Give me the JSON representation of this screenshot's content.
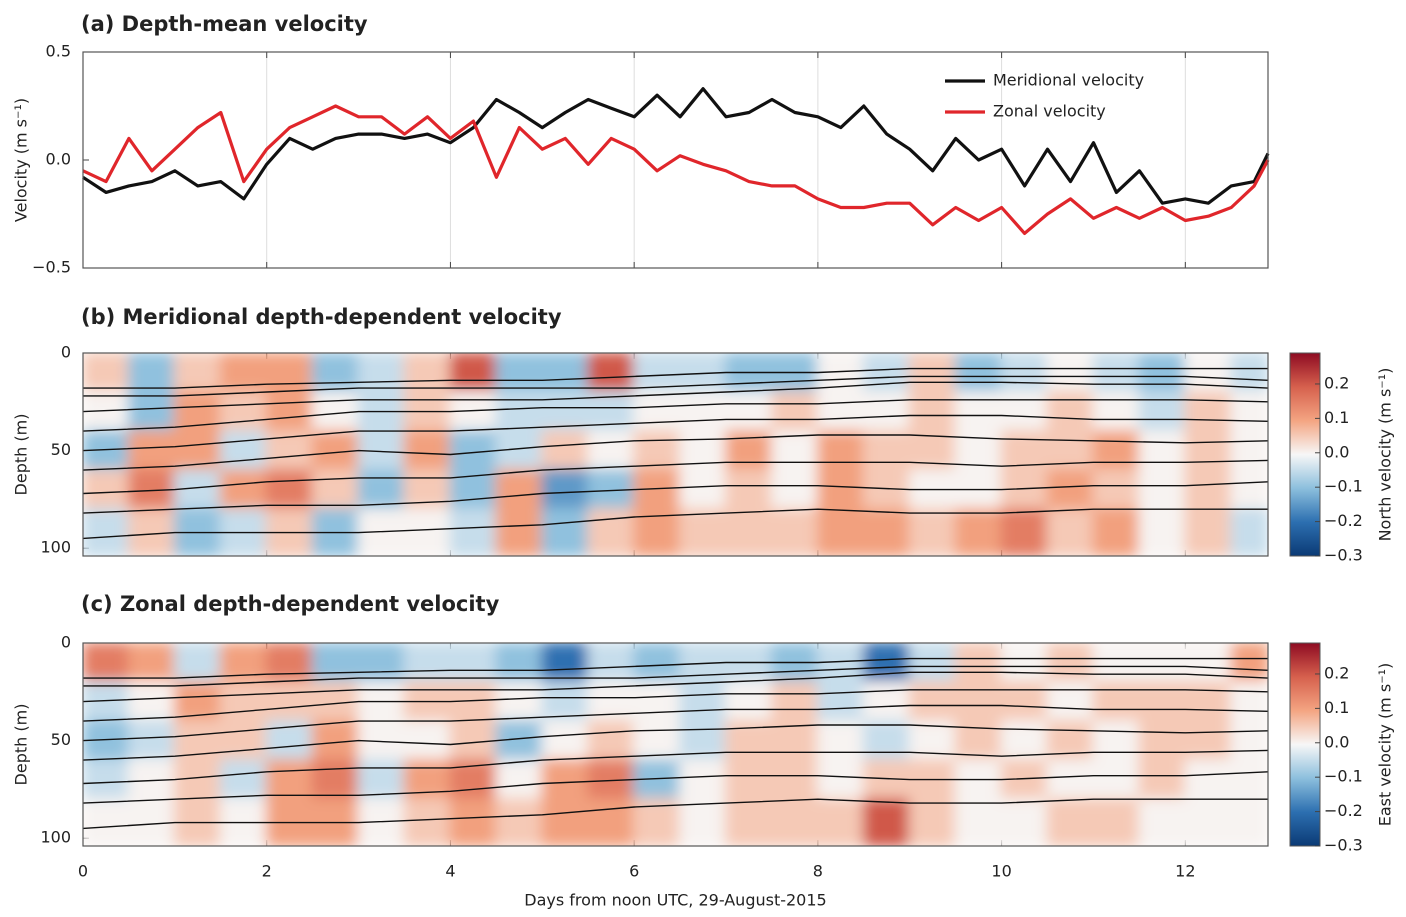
{
  "chart_data": [
    {
      "type": "line",
      "title": "(a) Depth-mean velocity",
      "ylabel": "Velocity (m s⁻¹)",
      "xlim": [
        0,
        12.9
      ],
      "xticks": [
        0,
        2,
        4,
        6,
        8,
        10,
        12
      ],
      "ylim": [
        -0.5,
        0.5
      ],
      "yticks": [
        {
          "value": -0.5,
          "label": "−0.5"
        },
        {
          "value": 0,
          "label": "0.0"
        },
        0.5
      ],
      "grid": true,
      "legend": "upper right",
      "x": [
        0,
        0.25,
        0.5,
        0.75,
        1,
        1.25,
        1.5,
        1.75,
        2,
        2.25,
        2.5,
        2.75,
        3,
        3.25,
        3.5,
        3.75,
        4,
        4.25,
        4.5,
        4.75,
        5,
        5.25,
        5.5,
        5.75,
        6,
        6.25,
        6.5,
        6.75,
        7,
        7.25,
        7.5,
        7.75,
        8,
        8.25,
        8.5,
        8.75,
        9,
        9.25,
        9.5,
        9.75,
        10,
        10.25,
        10.5,
        10.75,
        11,
        11.25,
        11.5,
        11.75,
        12,
        12.25,
        12.5,
        12.75,
        12.9
      ],
      "series": [
        {
          "name": "Meridional velocity",
          "color": "#111111",
          "values": [
            -0.08,
            -0.15,
            -0.12,
            -0.1,
            -0.05,
            -0.12,
            -0.1,
            -0.18,
            -0.02,
            0.1,
            0.05,
            0.1,
            0.12,
            0.12,
            0.1,
            0.12,
            0.08,
            0.15,
            0.28,
            0.22,
            0.15,
            0.22,
            0.28,
            0.24,
            0.2,
            0.3,
            0.2,
            0.33,
            0.2,
            0.22,
            0.28,
            0.22,
            0.2,
            0.15,
            0.25,
            0.12,
            0.05,
            -0.05,
            0.1,
            0.0,
            0.05,
            -0.12,
            0.05,
            -0.1,
            0.08,
            -0.15,
            -0.05,
            -0.2,
            -0.18,
            -0.2,
            -0.12,
            -0.1,
            0.03
          ]
        },
        {
          "name": "Zonal velocity",
          "color": "#e0262b",
          "values": [
            -0.05,
            -0.1,
            0.1,
            -0.05,
            0.05,
            0.15,
            0.22,
            -0.1,
            0.05,
            0.15,
            0.2,
            0.25,
            0.2,
            0.2,
            0.12,
            0.2,
            0.1,
            0.18,
            -0.08,
            0.15,
            0.05,
            0.1,
            -0.02,
            0.1,
            0.05,
            -0.05,
            0.02,
            -0.02,
            -0.05,
            -0.1,
            -0.12,
            -0.12,
            -0.18,
            -0.22,
            -0.22,
            -0.2,
            -0.2,
            -0.3,
            -0.22,
            -0.28,
            -0.22,
            -0.34,
            -0.25,
            -0.18,
            -0.27,
            -0.22,
            -0.27,
            -0.22,
            -0.28,
            -0.26,
            -0.22,
            -0.12,
            0.0
          ]
        }
      ]
    },
    {
      "type": "heatmap",
      "title": "(b) Meridional depth-dependent velocity",
      "ylabel": "Depth (m)",
      "clabel": "North velocity (m s⁻¹)",
      "xlim": [
        0,
        12.9
      ],
      "xticks": [
        0,
        2,
        4,
        6,
        8,
        10,
        12
      ],
      "ylim": [
        0,
        104
      ],
      "yticks": [
        0,
        50,
        100
      ],
      "clim": [
        -0.3,
        0.29
      ],
      "cticks": [
        {
          "value": -0.3,
          "label": "−0.3"
        },
        {
          "value": -0.2,
          "label": "−0.2"
        },
        {
          "value": -0.1,
          "label": "−0.1"
        },
        {
          "value": 0,
          "label": "0.0"
        },
        0.1,
        0.2
      ],
      "colors": [
        "#0b3a75",
        "#2c6fb0",
        "#8cbfdd",
        "#f7f7f7",
        "#f4a582",
        "#d6604d",
        "#8e0b22"
      ],
      "xbins": [
        0,
        0.5,
        1,
        1.5,
        2,
        2.5,
        3,
        3.5,
        4,
        4.5,
        5,
        5.5,
        6,
        6.5,
        7,
        7.5,
        8,
        8.5,
        9,
        9.5,
        10,
        10.5,
        11,
        11.5,
        12,
        12.5,
        12.9
      ],
      "ybins": [
        0,
        20,
        40,
        60,
        80,
        104
      ],
      "values": [
        [
          0.05,
          -0.1,
          0.05,
          0.1,
          0.1,
          -0.1,
          -0.05,
          0.05,
          0.2,
          -0.1,
          -0.1,
          0.2,
          -0.05,
          -0.05,
          -0.1,
          -0.1,
          0.0,
          -0.05,
          0.05,
          -0.1,
          -0.05,
          0.0,
          -0.05,
          -0.1,
          0.0,
          -0.05
        ],
        [
          0.0,
          -0.1,
          0.1,
          0.05,
          0.1,
          0.0,
          -0.05,
          0.05,
          0.0,
          -0.05,
          -0.05,
          -0.05,
          0.0,
          0.0,
          0.0,
          0.05,
          0.0,
          0.0,
          0.05,
          0.0,
          0.0,
          0.05,
          0.0,
          -0.05,
          0.05,
          0.0
        ],
        [
          -0.1,
          0.1,
          0.1,
          -0.05,
          0.05,
          0.1,
          -0.05,
          0.1,
          -0.1,
          -0.05,
          0.05,
          0.0,
          0.05,
          0.0,
          0.1,
          0.0,
          0.1,
          0.05,
          0.05,
          0.0,
          0.05,
          0.05,
          0.1,
          0.0,
          0.05,
          0.0
        ],
        [
          0.05,
          0.15,
          -0.05,
          0.1,
          0.15,
          0.05,
          -0.1,
          0.05,
          -0.1,
          0.1,
          -0.15,
          -0.1,
          0.1,
          0.0,
          0.05,
          0.0,
          0.1,
          0.05,
          0.0,
          0.0,
          0.05,
          0.1,
          0.05,
          0.0,
          0.05,
          0.0
        ],
        [
          -0.05,
          0.05,
          -0.1,
          -0.05,
          0.05,
          -0.1,
          0.0,
          0.0,
          -0.05,
          0.1,
          -0.1,
          0.05,
          0.1,
          0.05,
          0.05,
          0.05,
          0.1,
          0.1,
          0.05,
          0.1,
          0.15,
          0.05,
          0.1,
          0.0,
          0.05,
          -0.05
        ]
      ],
      "contours": {
        "color": "#111111",
        "x": [
          0,
          1,
          2,
          3,
          4,
          5,
          6,
          7,
          8,
          9,
          10,
          11,
          12,
          12.9
        ],
        "depths": [
          [
            18,
            18,
            16,
            15,
            14,
            14,
            12,
            10,
            10,
            8,
            8,
            8,
            8,
            8
          ],
          [
            22,
            22,
            20,
            18,
            18,
            18,
            18,
            16,
            14,
            12,
            12,
            12,
            12,
            14
          ],
          [
            30,
            28,
            26,
            24,
            24,
            24,
            22,
            20,
            18,
            15,
            15,
            16,
            16,
            18
          ],
          [
            40,
            38,
            34,
            30,
            30,
            28,
            28,
            26,
            26,
            24,
            24,
            24,
            24,
            25
          ],
          [
            50,
            48,
            44,
            40,
            40,
            38,
            36,
            34,
            34,
            32,
            32,
            34,
            34,
            35
          ],
          [
            60,
            58,
            54,
            50,
            52,
            48,
            45,
            44,
            42,
            42,
            44,
            45,
            46,
            45
          ],
          [
            72,
            70,
            66,
            64,
            64,
            60,
            58,
            56,
            56,
            56,
            58,
            56,
            56,
            55
          ],
          [
            82,
            80,
            78,
            78,
            76,
            72,
            70,
            68,
            68,
            70,
            70,
            68,
            68,
            66
          ],
          [
            95,
            92,
            92,
            92,
            90,
            88,
            84,
            82,
            80,
            82,
            82,
            80,
            80,
            80
          ]
        ]
      }
    },
    {
      "type": "heatmap",
      "title": "(c) Zonal depth-dependent velocity",
      "ylabel": "Depth (m)",
      "clabel": "East velocity (m s⁻¹)",
      "xlabel": "Days from noon UTC, 29-August-2015",
      "xlim": [
        0,
        12.9
      ],
      "xticks": [
        0,
        2,
        4,
        6,
        8,
        10,
        12
      ],
      "ylim": [
        0,
        104
      ],
      "yticks": [
        0,
        50,
        100
      ],
      "clim": [
        -0.3,
        0.29
      ],
      "cticks": [
        {
          "value": -0.3,
          "label": "−0.3"
        },
        {
          "value": -0.2,
          "label": "−0.2"
        },
        {
          "value": -0.1,
          "label": "−0.1"
        },
        {
          "value": 0,
          "label": "0.0"
        },
        0.1,
        0.2
      ],
      "colors": [
        "#0b3a75",
        "#2c6fb0",
        "#8cbfdd",
        "#f7f7f7",
        "#f4a582",
        "#d6604d",
        "#8e0b22"
      ],
      "xbins": [
        0,
        0.5,
        1,
        1.5,
        2,
        2.5,
        3,
        3.5,
        4,
        4.5,
        5,
        5.5,
        6,
        6.5,
        7,
        7.5,
        8,
        8.5,
        9,
        9.5,
        10,
        10.5,
        11,
        11.5,
        12,
        12.5,
        12.9
      ],
      "ybins": [
        0,
        20,
        40,
        60,
        80,
        104
      ],
      "values": [
        [
          0.15,
          0.1,
          -0.05,
          0.1,
          0.15,
          -0.1,
          -0.1,
          -0.05,
          -0.05,
          -0.1,
          -0.2,
          -0.05,
          -0.1,
          -0.05,
          -0.05,
          -0.1,
          -0.05,
          -0.2,
          -0.05,
          0.05,
          0.0,
          0.05,
          0.0,
          0.0,
          0.0,
          0.1
        ],
        [
          -0.05,
          0.0,
          0.1,
          0.05,
          0.05,
          0.05,
          0.0,
          0.05,
          0.05,
          0.0,
          -0.05,
          0.0,
          0.0,
          -0.05,
          0.0,
          0.05,
          -0.05,
          0.0,
          0.05,
          0.05,
          0.05,
          0.0,
          0.05,
          0.05,
          0.05,
          0.0
        ],
        [
          -0.1,
          -0.05,
          0.05,
          0.05,
          -0.05,
          0.1,
          0.0,
          0.0,
          0.05,
          -0.1,
          0.0,
          0.05,
          0.0,
          -0.05,
          0.05,
          0.05,
          0.0,
          -0.05,
          0.0,
          0.05,
          0.0,
          0.05,
          0.0,
          0.05,
          0.05,
          0.0
        ],
        [
          -0.05,
          0.0,
          0.05,
          -0.05,
          0.1,
          0.15,
          -0.05,
          0.1,
          0.15,
          0.0,
          0.1,
          0.15,
          -0.1,
          0.0,
          0.05,
          0.05,
          0.0,
          0.05,
          0.05,
          0.0,
          0.05,
          0.0,
          0.0,
          0.05,
          0.0,
          0.0
        ],
        [
          0.0,
          0.0,
          0.05,
          0.0,
          0.1,
          0.1,
          0.0,
          0.05,
          0.1,
          0.05,
          0.1,
          0.1,
          0.05,
          0.0,
          0.05,
          0.05,
          0.05,
          0.2,
          0.05,
          0.0,
          0.0,
          0.05,
          0.05,
          0.0,
          0.0,
          0.0
        ]
      ],
      "contours": {
        "color": "#111111",
        "x": [
          0,
          1,
          2,
          3,
          4,
          5,
          6,
          7,
          8,
          9,
          10,
          11,
          12,
          12.9
        ],
        "depths": [
          [
            18,
            18,
            16,
            15,
            14,
            14,
            12,
            10,
            10,
            8,
            8,
            8,
            8,
            8
          ],
          [
            22,
            22,
            20,
            18,
            18,
            18,
            18,
            16,
            14,
            12,
            12,
            12,
            12,
            14
          ],
          [
            30,
            28,
            26,
            24,
            24,
            24,
            22,
            20,
            18,
            15,
            15,
            16,
            16,
            18
          ],
          [
            40,
            38,
            34,
            30,
            30,
            28,
            28,
            26,
            26,
            24,
            24,
            24,
            24,
            25
          ],
          [
            50,
            48,
            44,
            40,
            40,
            38,
            36,
            34,
            34,
            32,
            32,
            34,
            34,
            35
          ],
          [
            60,
            58,
            54,
            50,
            52,
            48,
            45,
            44,
            42,
            42,
            44,
            45,
            46,
            45
          ],
          [
            72,
            70,
            66,
            64,
            64,
            60,
            58,
            56,
            56,
            56,
            58,
            56,
            56,
            55
          ],
          [
            82,
            80,
            78,
            78,
            76,
            72,
            70,
            68,
            68,
            70,
            70,
            68,
            68,
            66
          ],
          [
            95,
            92,
            92,
            92,
            90,
            88,
            84,
            82,
            80,
            82,
            82,
            80,
            80,
            80
          ]
        ]
      }
    }
  ]
}
